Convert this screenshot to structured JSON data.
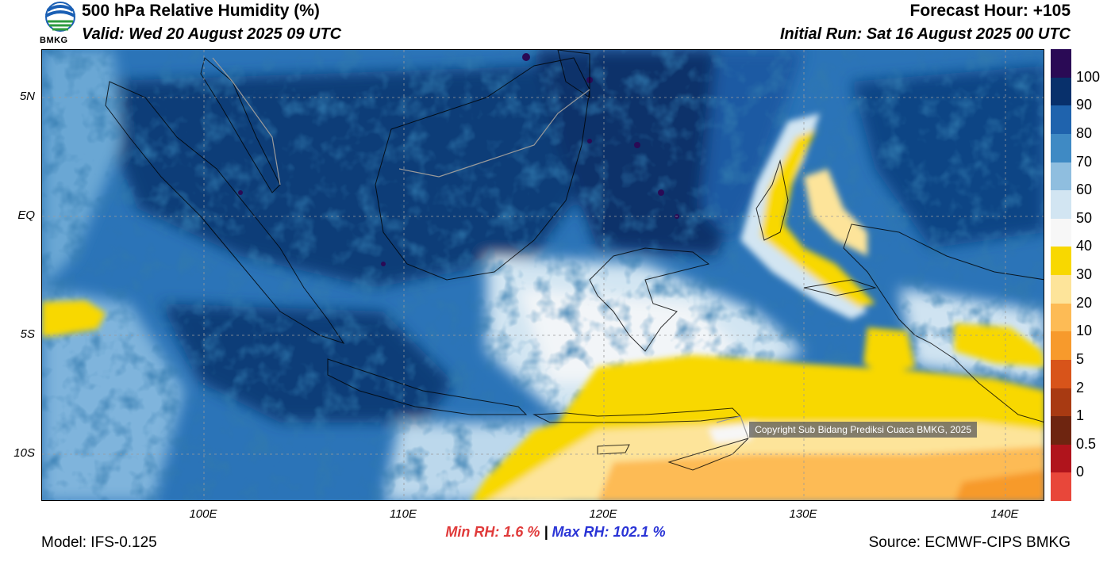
{
  "header": {
    "title": "500 hPa Relative Humidity (%)",
    "valid": "Valid: Wed 20 August 2025 09 UTC",
    "forecast_hour": "Forecast Hour: +105",
    "initial_run": "Initial Run: Sat 16 August 2025 00 UTC",
    "logo_text": "BMKG"
  },
  "axes": {
    "lat_labels": [
      "5N",
      "EQ",
      "5S",
      "10S"
    ],
    "lon_labels": [
      "100E",
      "110E",
      "120E",
      "130E",
      "140E"
    ]
  },
  "colorbar": {
    "labels": [
      "100",
      "90",
      "80",
      "70",
      "60",
      "50",
      "40",
      "30",
      "20",
      "10",
      "5",
      "2",
      "1",
      "0.5",
      "0"
    ],
    "colors": [
      "#2a0a55",
      "#08306b",
      "#1f63ad",
      "#3f8ac4",
      "#8fbedf",
      "#d2e5f2",
      "#f7f7f7",
      "#f8d800",
      "#fde49a",
      "#fdbb55",
      "#f79a2c",
      "#d8541a",
      "#a83a12",
      "#6e2510",
      "#b0141c",
      "#e8473a"
    ]
  },
  "stats": {
    "min_rh": "Min RH:   1.6 %",
    "separator": "|",
    "max_rh": "Max RH: 102.1 %"
  },
  "footer": {
    "model": "Model: IFS-0.125",
    "source": "Source: ECMWF-CIPS BMKG",
    "copyright": "Copyright Sub Bidang Prediksi Cuaca BMKG, 2025"
  }
}
